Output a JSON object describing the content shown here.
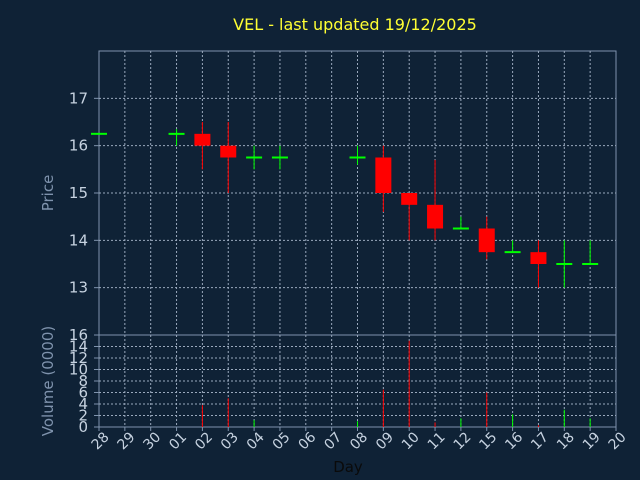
{
  "chart_data": {
    "type": "candlestick",
    "title": "VEL - last updated 19/12/2025",
    "xlabel": "Day",
    "ylabel": "Price",
    "volume_label": "Volume (0000)",
    "grid": true,
    "categories": [
      "28",
      "29",
      "30",
      "01",
      "02",
      "03",
      "04",
      "05",
      "06",
      "07",
      "08",
      "09",
      "10",
      "11",
      "12",
      "15",
      "16",
      "17",
      "18",
      "19",
      "20"
    ],
    "price_ticks": [
      "13",
      "14",
      "15",
      "16",
      "17"
    ],
    "volume_ticks": [
      "0",
      "2",
      "4",
      "6",
      "8",
      "10",
      "12",
      "14",
      "16"
    ],
    "ylim": [
      12,
      18
    ],
    "volume_ylim": [
      0,
      16
    ],
    "candles": [
      {
        "day": "28",
        "open": 16.25,
        "high": 16.25,
        "low": 16.25,
        "close": 16.25,
        "volume": 0
      },
      {
        "day": "01",
        "open": 16.25,
        "high": 16.35,
        "low": 16.0,
        "close": 16.25,
        "volume": 0
      },
      {
        "day": "02",
        "open": 16.25,
        "high": 16.5,
        "low": 15.5,
        "close": 16.0,
        "volume": 3.8
      },
      {
        "day": "03",
        "open": 16.0,
        "high": 16.5,
        "low": 15.0,
        "close": 15.75,
        "volume": 5.0
      },
      {
        "day": "04",
        "open": 15.75,
        "high": 16.0,
        "low": 15.5,
        "close": 15.75,
        "volume": 1.2
      },
      {
        "day": "05",
        "open": 15.75,
        "high": 16.0,
        "low": 15.5,
        "close": 15.75,
        "volume": 0
      },
      {
        "day": "08",
        "open": 15.75,
        "high": 16.0,
        "low": 15.6,
        "close": 15.75,
        "volume": 1.0
      },
      {
        "day": "09",
        "open": 15.75,
        "high": 16.0,
        "low": 14.6,
        "close": 15.0,
        "volume": 6.5
      },
      {
        "day": "10",
        "open": 15.0,
        "high": 15.0,
        "low": 14.0,
        "close": 14.75,
        "volume": 15.0
      },
      {
        "day": "11",
        "open": 14.75,
        "high": 15.7,
        "low": 14.0,
        "close": 14.25,
        "volume": 0.8
      },
      {
        "day": "12",
        "open": 14.25,
        "high": 14.5,
        "low": 14.25,
        "close": 14.25,
        "volume": 1.5
      },
      {
        "day": "15",
        "open": 14.25,
        "high": 14.5,
        "low": 13.6,
        "close": 13.75,
        "volume": 6.0
      },
      {
        "day": "16",
        "open": 13.75,
        "high": 14.0,
        "low": 13.75,
        "close": 13.75,
        "volume": 2.2
      },
      {
        "day": "17",
        "open": 13.75,
        "high": 14.0,
        "low": 13.0,
        "close": 13.5,
        "volume": 0.3
      },
      {
        "day": "18",
        "open": 13.5,
        "high": 14.0,
        "low": 13.0,
        "close": 13.5,
        "volume": 3.0
      },
      {
        "day": "19",
        "open": 13.5,
        "high": 14.0,
        "low": 13.5,
        "close": 13.5,
        "volume": 1.5
      }
    ],
    "colors": {
      "background": "#0f2236",
      "axis": "#7f93ad",
      "grid": "#9aa9bd",
      "title": "#ffff33",
      "label": "#7f93ad",
      "tick_text": "#c6d2e0",
      "up": "#00ff00",
      "down": "#ff0000"
    }
  }
}
